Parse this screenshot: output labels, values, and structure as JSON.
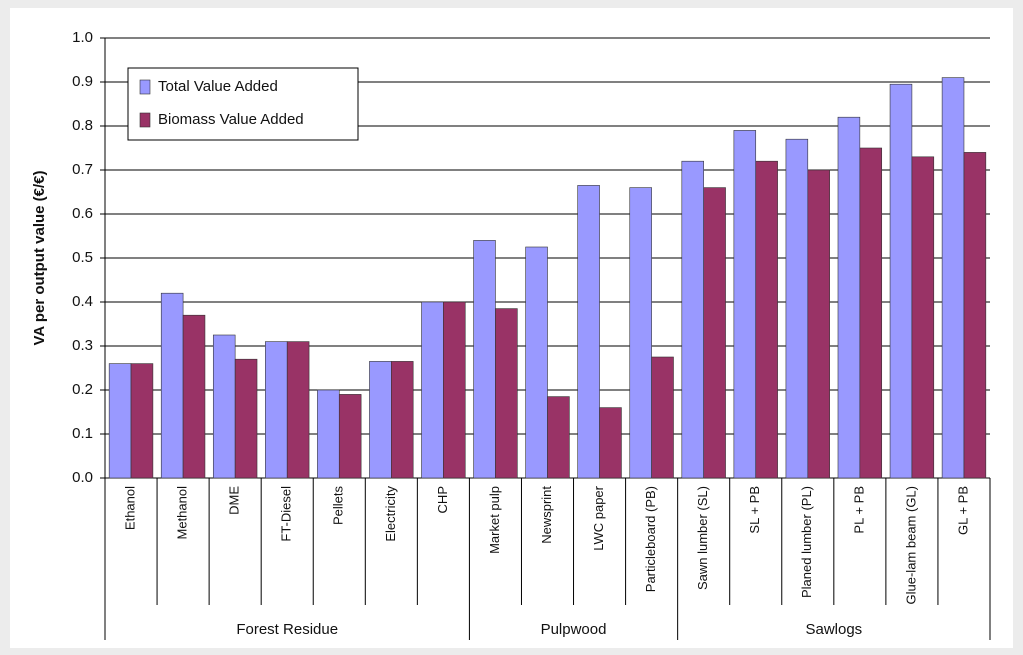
{
  "chart_data": {
    "type": "bar",
    "y_label": "VA per output value (€/€)",
    "groups": [
      {
        "name": "Forest Residue",
        "categories": [
          "Ethanol",
          "Methanol",
          "DME",
          "FT-Diesel",
          "Pellets",
          "Electricity",
          "CHP"
        ]
      },
      {
        "name": "Pulpwood",
        "categories": [
          "Market pulp",
          "Newsprint",
          "LWC paper",
          "Particleboard (PB)"
        ]
      },
      {
        "name": "Sawlogs",
        "categories": [
          "Sawn lumber (SL)",
          "SL + PB",
          "Planed lumber (PL)",
          "PL + PB",
          "Glue-lam beam (GL)",
          "GL + PB"
        ]
      }
    ],
    "series": [
      {
        "name": "Total Value Added",
        "color": "#9999ff",
        "values": [
          0.26,
          0.42,
          0.325,
          0.31,
          0.2,
          0.265,
          0.4,
          0.54,
          0.525,
          0.665,
          0.66,
          0.72,
          0.79,
          0.77,
          0.82,
          0.895,
          0.91
        ]
      },
      {
        "name": "Biomass Value Added",
        "color": "#993366",
        "values": [
          0.26,
          0.37,
          0.27,
          0.31,
          0.19,
          0.265,
          0.4,
          0.385,
          0.185,
          0.16,
          0.275,
          0.66,
          0.72,
          0.7,
          0.75,
          0.73,
          0.74
        ]
      }
    ],
    "ylim": [
      0,
      1
    ],
    "yticks": [
      {
        "value": 0,
        "label": "0.0"
      },
      0.1,
      0.2,
      0.3,
      0.4,
      0.5,
      0.6,
      0.7,
      0.8,
      0.9,
      {
        "value": 1,
        "label": "1.0"
      }
    ],
    "grid": true,
    "legend": "upper-left"
  }
}
